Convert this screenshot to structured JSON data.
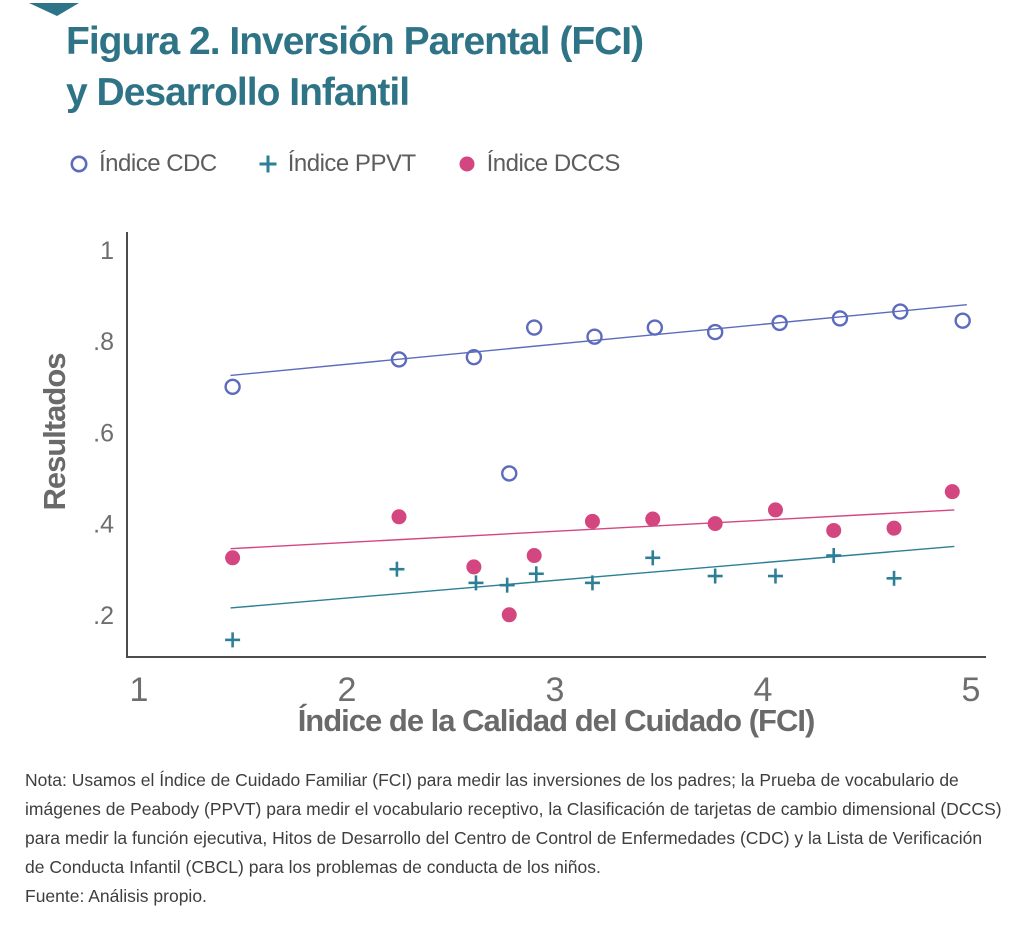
{
  "figure": {
    "title_line1": "Figura 2. Inversión Parental (FCI)",
    "title_line2": "y Desarrollo Infantil",
    "note": "Nota: Usamos el Índice de Cuidado Familiar (FCI) para medir las inversiones de los padres; la Prueba de vocabulario de imágenes de Peabody (PPVT) para medir el vocabulario receptivo, la Clasificación de tarjetas de cambio dimensional (DCCS) para medir la función ejecutiva, Hitos de Desarrollo del Centro de Control de Enfermedades (CDC) y la Lista de Verificación de Conducta Infantil (CBCL) para los problemas de conducta de los niños.",
    "source": "Fuente: Análisis propio."
  },
  "colors": {
    "title_teal": "#2e7486",
    "corner_accent": "#2d7488",
    "axis_line": "#4c4c4c",
    "tick_label_gray": "#6e6e6e",
    "axis_title_gray": "#6a6a6a",
    "legend_text_gray": "#5d5d5d",
    "note_gray": "#3e3e3e",
    "cdc_blue": "#5c6bbd",
    "ppvt_teal": "#2c7f95",
    "dccs_pink": "#d44680"
  },
  "chart_data": {
    "type": "scatter",
    "title": "Figura 2. Inversión Parental (FCI) y Desarrollo Infantil",
    "xlabel": "Índice de la Calidad del Cuidado (FCI)",
    "ylabel": "Resultados",
    "xlim": [
      1,
      5
    ],
    "ylim": [
      0.1,
      1.04
    ],
    "x_ticks": [
      1,
      2,
      3,
      4,
      5
    ],
    "y_ticks": [
      1,
      0.8,
      0.6,
      0.4,
      0.2
    ],
    "y_tick_labels": [
      "1",
      ".8",
      ".6",
      ".4",
      ".2"
    ],
    "grid": false,
    "legend_position": "top-left-above-plot",
    "series": [
      {
        "id": "cdc",
        "name": "Índice CDC",
        "marker": "open-circle",
        "color": "#5c6bbd",
        "points": [
          [
            1.45,
            0.7
          ],
          [
            2.25,
            0.76
          ],
          [
            2.61,
            0.765
          ],
          [
            2.78,
            0.51
          ],
          [
            2.9,
            0.83
          ],
          [
            3.19,
            0.81
          ],
          [
            3.48,
            0.83
          ],
          [
            3.77,
            0.82
          ],
          [
            4.08,
            0.84
          ],
          [
            4.37,
            0.85
          ],
          [
            4.66,
            0.865
          ],
          [
            4.96,
            0.845
          ]
        ],
        "trend": {
          "x1": 1.44,
          "y1": 0.725,
          "x2": 4.98,
          "y2": 0.88
        }
      },
      {
        "id": "ppvt",
        "name": "Índice PPVT",
        "marker": "plus",
        "color": "#2c7f95",
        "points": [
          [
            1.45,
            0.145
          ],
          [
            2.24,
            0.3
          ],
          [
            2.62,
            0.27
          ],
          [
            2.77,
            0.265
          ],
          [
            2.91,
            0.29
          ],
          [
            3.18,
            0.27
          ],
          [
            3.47,
            0.325
          ],
          [
            3.77,
            0.285
          ],
          [
            4.06,
            0.285
          ],
          [
            4.34,
            0.33
          ],
          [
            4.63,
            0.28
          ]
        ],
        "trend": {
          "x1": 1.44,
          "y1": 0.215,
          "x2": 4.92,
          "y2": 0.35
        }
      },
      {
        "id": "dccs",
        "name": "Índice DCCS",
        "marker": "filled-circle",
        "color": "#d44680",
        "points": [
          [
            1.45,
            0.325
          ],
          [
            2.25,
            0.415
          ],
          [
            2.61,
            0.305
          ],
          [
            2.78,
            0.2
          ],
          [
            2.9,
            0.33
          ],
          [
            3.18,
            0.405
          ],
          [
            3.47,
            0.41
          ],
          [
            3.77,
            0.4
          ],
          [
            4.06,
            0.43
          ],
          [
            4.34,
            0.385
          ],
          [
            4.63,
            0.39
          ],
          [
            4.91,
            0.47
          ]
        ],
        "trend": {
          "x1": 1.44,
          "y1": 0.345,
          "x2": 4.92,
          "y2": 0.43
        }
      }
    ]
  }
}
